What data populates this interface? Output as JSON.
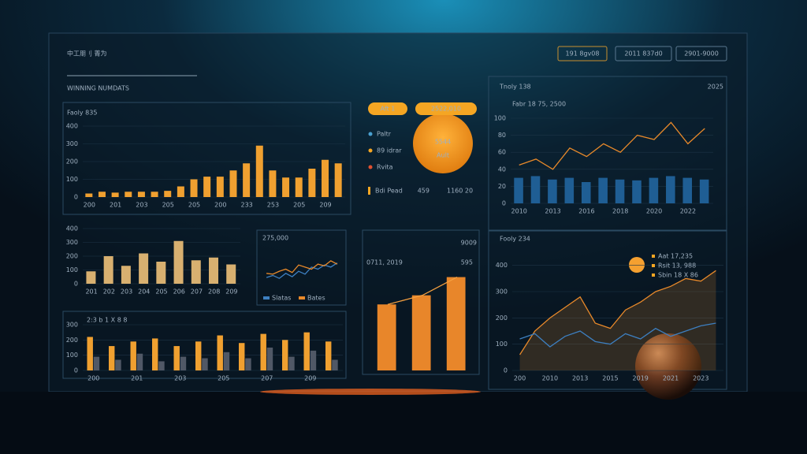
{
  "header": {
    "title": "中工朋刂 菁为",
    "subtitle": "WINNING NUMDATS",
    "buttons": [
      "191 8gv08",
      "2011 837d0",
      "2901-9000"
    ]
  },
  "kpi": {
    "badge": "Aft 1",
    "badge2": "2522,010",
    "value": "5544",
    "caption": "Ault",
    "items": [
      "Paltr",
      "89 idrar",
      "Rvita"
    ],
    "footer": [
      "Bdi Pead",
      "459",
      "1160 20"
    ]
  },
  "chart_data": [
    {
      "type": "bar",
      "title": "Faoly 835",
      "categories": [
        "200",
        null,
        "201",
        null,
        "203",
        null,
        "205",
        null,
        "205",
        null,
        "200",
        null,
        "233",
        null,
        "253",
        null,
        "205",
        null,
        "209",
        null
      ],
      "series": [
        {
          "color": "#f0a030",
          "values": [
            20,
            30,
            25,
            30,
            30,
            30,
            35,
            60,
            100,
            115,
            115,
            150,
            190,
            290,
            150,
            110,
            110,
            160,
            210,
            190
          ]
        }
      ],
      "ylim": [
        0,
        400
      ],
      "yticks": [
        0,
        100,
        200,
        300,
        400
      ],
      "grid": true
    },
    {
      "type": "bar",
      "title": "Tnoly 138",
      "subtitle": "2025",
      "annotation": "Fabr 18 75, 2500",
      "categories": [
        "2010",
        null,
        "2013",
        null,
        "2016",
        null,
        "2018",
        null,
        "2020",
        null,
        "2022",
        null
      ],
      "series": [
        {
          "color": "#1f5e94",
          "values": [
            30,
            32,
            28,
            30,
            25,
            30,
            28,
            27,
            30,
            32,
            30,
            28
          ]
        },
        {
          "kind": "line",
          "color": "#e8892a",
          "values": [
            45,
            52,
            40,
            65,
            55,
            70,
            60,
            80,
            75,
            95,
            70,
            88
          ]
        }
      ],
      "ylim": [
        0,
        100
      ],
      "yticks": [
        0,
        20,
        40,
        60,
        80,
        100
      ],
      "grid": true
    },
    {
      "type": "bar",
      "categories": [
        "201",
        "202",
        "203",
        "204",
        "205",
        "206",
        "207",
        "208",
        "209"
      ],
      "series": [
        {
          "color": "#d8b070",
          "values": [
            90,
            200,
            130,
            220,
            160,
            310,
            170,
            190,
            140
          ]
        }
      ],
      "ylim": [
        0,
        400
      ],
      "yticks": [
        0,
        100,
        200,
        300,
        400
      ],
      "grid": true
    },
    {
      "type": "line",
      "title": "275,000",
      "series": [
        {
          "name": "Slatas",
          "color": "#3d7fc0",
          "values": [
            30,
            35,
            28,
            40,
            32,
            45,
            38,
            55,
            50,
            60,
            55,
            65
          ]
        },
        {
          "name": "Bates",
          "color": "#e8892a",
          "values": [
            40,
            38,
            45,
            50,
            42,
            60,
            55,
            50,
            62,
            58,
            70,
            62
          ]
        }
      ],
      "ylim": [
        0,
        100
      ]
    },
    {
      "type": "bar",
      "title": "2:3 b 1 X 8 8",
      "categories": [
        "200",
        null,
        "201",
        null,
        "203",
        null,
        "205",
        null,
        "207",
        null,
        "209",
        null
      ],
      "series": [
        {
          "color": "#f0a030",
          "values": [
            220,
            160,
            190,
            210,
            160,
            190,
            230,
            180,
            240,
            200,
            250,
            190
          ]
        },
        {
          "color": "#505866",
          "values": [
            90,
            70,
            110,
            60,
            90,
            80,
            120,
            80,
            150,
            90,
            130,
            70
          ]
        }
      ],
      "ylim": [
        0,
        300
      ],
      "yticks": [
        0,
        100,
        200,
        300
      ],
      "grid": true
    },
    {
      "type": "bar",
      "title": "0711, 2019",
      "subtitle": "9009",
      "annotation": "595",
      "series": [
        {
          "color": "#e8862a",
          "values": [
            290,
            330,
            410
          ]
        },
        {
          "kind": "line",
          "color": "#f5a040",
          "values": [
            290,
            330,
            410
          ]
        }
      ],
      "ylim": [
        0,
        450
      ]
    },
    {
      "type": "line",
      "title": "Fooly 234",
      "legend": [
        "Aat 17,235",
        "Rsit 13, 988",
        "Sbin 18 X 86"
      ],
      "categories": [
        "200",
        null,
        "2010",
        null,
        "2013",
        null,
        "2015",
        null,
        "2019",
        null,
        "2021",
        null,
        "2023",
        null
      ],
      "series": [
        {
          "color": "#e8892a",
          "fill": true,
          "values": [
            60,
            150,
            200,
            240,
            280,
            180,
            160,
            230,
            260,
            300,
            320,
            350,
            340,
            380
          ]
        },
        {
          "color": "#3d7fc0",
          "values": [
            120,
            140,
            90,
            130,
            150,
            110,
            100,
            140,
            120,
            160,
            130,
            150,
            170,
            180
          ]
        }
      ],
      "ylim": [
        0,
        450
      ],
      "yticks": [
        0,
        100,
        200,
        300,
        400
      ],
      "grid": true
    }
  ]
}
